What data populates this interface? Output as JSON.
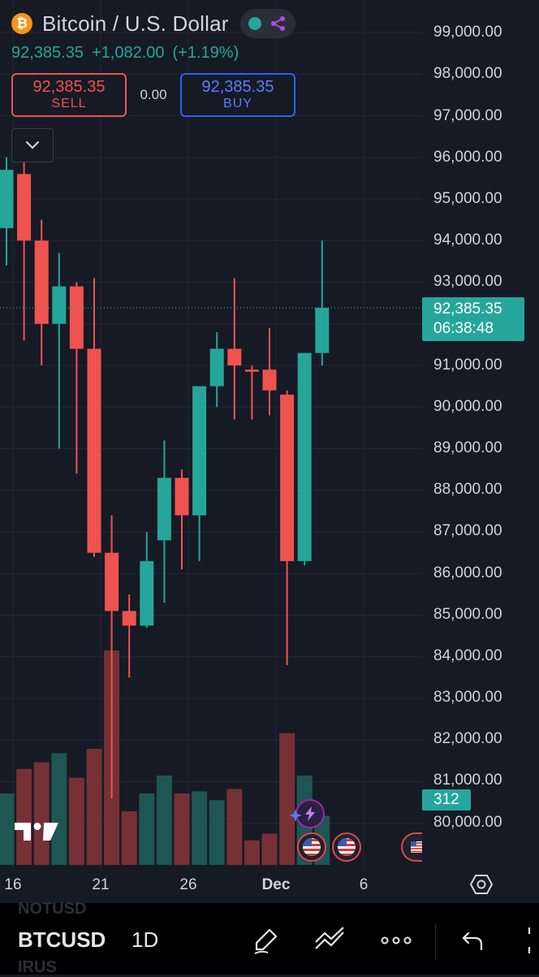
{
  "header": {
    "title": "Bitcoin / U.S. Dollar",
    "last_price": "92,385.35",
    "change": "+1,082.00",
    "change_pct": "(+1.19%)"
  },
  "trade": {
    "sell_price": "92,385.35",
    "sell_label": "SELL",
    "spread": "0.00",
    "buy_price": "92,385.35",
    "buy_label": "BUY"
  },
  "price_axis": {
    "labels": [
      "99,000.00",
      "98,000.00",
      "97,000.00",
      "96,000.00",
      "95,000.00",
      "94,000.00",
      "93,000.00",
      "91,000.00",
      "90,000.00",
      "89,000.00",
      "88,000.00",
      "87,000.00",
      "86,000.00",
      "85,000.00",
      "84,000.00",
      "83,000.00",
      "82,000.00",
      "81,000.00",
      "80,000.00"
    ],
    "current_price": "92,385.35",
    "countdown": "06:38:48",
    "volume_value": "312"
  },
  "time_axis": [
    "16",
    "21",
    "26",
    "Dec",
    "6"
  ],
  "toolbar": {
    "symbol": "BTCUSD",
    "interval": "1D",
    "ghost_top": "NOTUSD",
    "ghost_bottom": "IRUS"
  },
  "colors": {
    "up": "#26a69a",
    "down": "#ef5350",
    "background": "#161a25"
  },
  "icons": [
    "bitcoin-icon",
    "share-icon",
    "chevron-down-icon",
    "gear-icon",
    "pen-icon",
    "trend-line-icon",
    "more-icon",
    "undo-icon",
    "us-flag-icon",
    "lightning-icon",
    "tradingview-logo"
  ],
  "chart_data": {
    "type": "candlestick",
    "interval": "1D",
    "candles": [
      {
        "o": 94300,
        "h": 96000,
        "l": 93400,
        "c": 95700
      },
      {
        "o": 95600,
        "h": 95900,
        "l": 91600,
        "c": 94000
      },
      {
        "o": 94000,
        "h": 94500,
        "l": 91000,
        "c": 92000
      },
      {
        "o": 92000,
        "h": 93700,
        "l": 89000,
        "c": 92900
      },
      {
        "o": 92900,
        "h": 93000,
        "l": 88400,
        "c": 91400
      },
      {
        "o": 91400,
        "h": 93100,
        "l": 86400,
        "c": 86500
      },
      {
        "o": 86500,
        "h": 87400,
        "l": 80600,
        "c": 85100
      },
      {
        "o": 85100,
        "h": 85500,
        "l": 83500,
        "c": 84750
      },
      {
        "o": 84750,
        "h": 87000,
        "l": 84700,
        "c": 86300
      },
      {
        "o": 86800,
        "h": 89200,
        "l": 85300,
        "c": 88300
      },
      {
        "o": 88300,
        "h": 88500,
        "l": 86100,
        "c": 87400
      },
      {
        "o": 87400,
        "h": 90500,
        "l": 86300,
        "c": 90500
      },
      {
        "o": 90500,
        "h": 91800,
        "l": 90000,
        "c": 91400
      },
      {
        "o": 91400,
        "h": 93100,
        "l": 89700,
        "c": 91000
      },
      {
        "o": 90900,
        "h": 91000,
        "l": 89700,
        "c": 90850
      },
      {
        "o": 90900,
        "h": 91900,
        "l": 89800,
        "c": 90400
      },
      {
        "o": 90300,
        "h": 90400,
        "l": 83800,
        "c": 86300
      },
      {
        "o": 86300,
        "h": 91300,
        "l": 86200,
        "c": 91300
      },
      {
        "o": 91300,
        "h": 94000,
        "l": 91000,
        "c": 92385
      }
    ],
    "volumes": [
      {
        "v": 160,
        "d": "up"
      },
      {
        "v": 215,
        "d": "down"
      },
      {
        "v": 230,
        "d": "down"
      },
      {
        "v": 250,
        "d": "up"
      },
      {
        "v": 195,
        "d": "down"
      },
      {
        "v": 260,
        "d": "down"
      },
      {
        "v": 480,
        "d": "down"
      },
      {
        "v": 120,
        "d": "down"
      },
      {
        "v": 160,
        "d": "up"
      },
      {
        "v": 200,
        "d": "up"
      },
      {
        "v": 160,
        "d": "down"
      },
      {
        "v": 165,
        "d": "up"
      },
      {
        "v": 145,
        "d": "up"
      },
      {
        "v": 170,
        "d": "down"
      },
      {
        "v": 55,
        "d": "down"
      },
      {
        "v": 70,
        "d": "down"
      },
      {
        "v": 295,
        "d": "down"
      },
      {
        "v": 200,
        "d": "up"
      },
      {
        "v": 110,
        "d": "up"
      }
    ],
    "ylim": [
      79500,
      99500
    ],
    "current_price": 92385.35,
    "grid": true
  }
}
